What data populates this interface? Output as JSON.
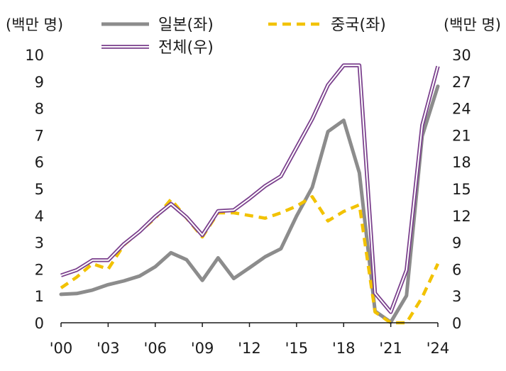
{
  "chart_data": {
    "type": "line",
    "left_unit": "(백만 명)",
    "right_unit": "(백만 명)",
    "x": [
      2000,
      2001,
      2002,
      2003,
      2004,
      2005,
      2006,
      2007,
      2008,
      2009,
      2010,
      2011,
      2012,
      2013,
      2014,
      2015,
      2016,
      2017,
      2018,
      2019,
      2020,
      2021,
      2022,
      2023,
      2024
    ],
    "x_tick_labels": [
      {
        "year": 2000,
        "label": "'00"
      },
      {
        "year": 2003,
        "label": "'03"
      },
      {
        "year": 2006,
        "label": "'06"
      },
      {
        "year": 2009,
        "label": "'09"
      },
      {
        "year": 2012,
        "label": "'12"
      },
      {
        "year": 2015,
        "label": "'15"
      },
      {
        "year": 2018,
        "label": "'18"
      },
      {
        "year": 2021,
        "label": "'21"
      },
      {
        "year": 2024,
        "label": "'24"
      }
    ],
    "y_left": {
      "min": 0,
      "max": 10,
      "ticks": [
        "0",
        "1",
        "2",
        "3",
        "4",
        "5",
        "6",
        "7",
        "8",
        "9",
        "10"
      ]
    },
    "y_right": {
      "min": 0,
      "max": 30,
      "ticks": [
        "0",
        "3",
        "6",
        "9",
        "12",
        "15",
        "18",
        "21",
        "24",
        "27",
        "30"
      ]
    },
    "series": [
      {
        "name": "일본(좌)",
        "axis": "left",
        "style": "solid-gray",
        "color": "#8c8c8c",
        "values": [
          1.06,
          1.09,
          1.22,
          1.42,
          1.56,
          1.74,
          2.09,
          2.61,
          2.35,
          1.58,
          2.42,
          1.65,
          2.05,
          2.46,
          2.76,
          3.98,
          5.05,
          7.13,
          7.55,
          5.59,
          0.43,
          0.02,
          1.01,
          6.96,
          8.82
        ]
      },
      {
        "name": "중국(좌)",
        "axis": "left",
        "style": "dashed-yellow",
        "color": "#f2c200",
        "values": [
          1.3,
          1.7,
          2.2,
          2.0,
          2.9,
          3.4,
          3.9,
          4.6,
          3.9,
          3.2,
          4.1,
          4.1,
          4.0,
          3.9,
          4.1,
          4.35,
          4.7,
          3.8,
          4.15,
          4.4,
          0.4,
          0.0,
          0.0,
          0.95,
          2.2
        ]
      },
      {
        "name": "전체(우)",
        "axis": "right",
        "style": "double-purple",
        "color": "#7a3f8c",
        "values": [
          5.3,
          5.9,
          7.0,
          7.0,
          8.8,
          10.2,
          11.9,
          13.3,
          11.8,
          9.8,
          12.5,
          12.6,
          13.9,
          15.3,
          16.4,
          19.6,
          22.8,
          26.6,
          28.8,
          28.8,
          3.3,
          1.2,
          5.9,
          22.1,
          28.7
        ]
      }
    ]
  }
}
